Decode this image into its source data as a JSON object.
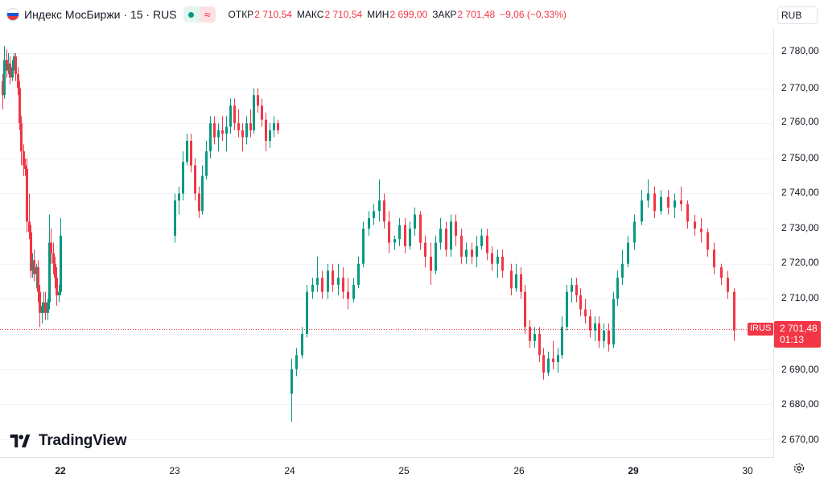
{
  "header": {
    "symbol_title": "Индекс МосБиржи · 15 · RUS",
    "status_delay_icon": "≈",
    "ohlc": {
      "open_label": "ОТКР",
      "open_value": "2 710,54",
      "high_label": "МАКС",
      "high_value": "2 710,54",
      "low_label": "МИН",
      "low_value": "2 699,00",
      "close_label": "ЗАКР",
      "close_value": "2 701,48",
      "change": "−9,06 (−0,33%)"
    },
    "flag_colors": [
      "#ffffff",
      "#1c57d4",
      "#e53935"
    ],
    "icons": [
      "russia-flag-icon",
      "market-open-icon",
      "delayed-data-icon",
      "settings-gear-icon",
      "tradingview-logo-icon"
    ]
  },
  "currency_button": "RUB",
  "price_scale": {
    "labels": [
      "2 780,00",
      "2 770,00",
      "2 760,00",
      "2 750,00",
      "2 740,00",
      "2 730,00",
      "2 720,00",
      "2 710,00",
      "2 690,00",
      "2 680,00",
      "2 670,00"
    ]
  },
  "time_scale": {
    "labels": [
      "22",
      "23",
      "24",
      "25",
      "26",
      "29",
      "30"
    ]
  },
  "last_price": {
    "symbol": "IRUS",
    "price": "2 701,48",
    "countdown": "01:13"
  },
  "logo": {
    "text": "TradingView"
  },
  "colors": {
    "up": "#089981",
    "down": "#f23645",
    "grid": "#f0f3fa",
    "text": "#131722"
  },
  "chart_data": {
    "type": "candlestick",
    "title": "Индекс МосБиржи · 15 · RUS",
    "ylim": [
      2665,
      2785
    ],
    "y_ticks": [
      2670,
      2680,
      2690,
      2700,
      2710,
      2720,
      2730,
      2740,
      2750,
      2760,
      2770,
      2780
    ],
    "x_categories": [
      "22",
      "23",
      "24",
      "25",
      "26",
      "29",
      "30"
    ],
    "last_price": 2701.48,
    "sessions": [
      {
        "day": "22",
        "ohlc": [
          [
            2772,
            2774,
            2764,
            2768
          ],
          [
            2768,
            2782,
            2767,
            2778
          ],
          [
            2778,
            2781,
            2773,
            2775
          ],
          [
            2775,
            2780,
            2774,
            2777
          ],
          [
            2777,
            2779,
            2771,
            2773
          ],
          [
            2773,
            2778,
            2772,
            2776
          ],
          [
            2776,
            2780,
            2775,
            2779
          ],
          [
            2779,
            2780,
            2772,
            2774
          ],
          [
            2774,
            2776,
            2768,
            2770
          ],
          [
            2770,
            2772,
            2758,
            2760
          ],
          [
            2760,
            2762,
            2748,
            2752
          ],
          [
            2752,
            2754,
            2745,
            2748
          ],
          [
            2748,
            2750,
            2745,
            2747
          ],
          [
            2747,
            2750,
            2729,
            2732
          ],
          [
            2732,
            2740,
            2727,
            2729
          ],
          [
            2729,
            2731,
            2716,
            2718
          ],
          [
            2718,
            2723,
            2716,
            2721
          ],
          [
            2721,
            2724,
            2715,
            2717
          ],
          [
            2717,
            2720,
            2713,
            2719
          ],
          [
            2719,
            2721,
            2709,
            2712
          ],
          [
            2712,
            2714,
            2702,
            2706
          ],
          [
            2706,
            2709,
            2703,
            2708
          ],
          [
            2708,
            2712,
            2706,
            2709
          ],
          [
            2709,
            2712,
            2704,
            2706
          ],
          [
            2706,
            2710,
            2704,
            2709
          ],
          [
            2709,
            2734,
            2707,
            2726
          ],
          [
            2726,
            2730,
            2720,
            2723
          ],
          [
            2723,
            2726,
            2717,
            2720
          ],
          [
            2720,
            2722,
            2713,
            2716
          ],
          [
            2716,
            2719,
            2708,
            2711
          ],
          [
            2711,
            2714,
            2709,
            2712
          ],
          [
            2712,
            2733,
            2711,
            2728
          ]
        ]
      },
      {
        "day": "23",
        "ohlc": [
          [
            2728,
            2740,
            2726,
            2738
          ],
          [
            2738,
            2742,
            2734,
            2740
          ],
          [
            2740,
            2752,
            2738,
            2749
          ],
          [
            2749,
            2757,
            2748,
            2755
          ],
          [
            2755,
            2757,
            2746,
            2748
          ],
          [
            2748,
            2750,
            2738,
            2740
          ],
          [
            2740,
            2742,
            2733,
            2735
          ],
          [
            2735,
            2748,
            2734,
            2745
          ],
          [
            2745,
            2755,
            2744,
            2752
          ],
          [
            2752,
            2762,
            2750,
            2760
          ],
          [
            2760,
            2762,
            2754,
            2756
          ],
          [
            2756,
            2760,
            2752,
            2758
          ],
          [
            2758,
            2762,
            2755,
            2757
          ],
          [
            2757,
            2762,
            2752,
            2759
          ],
          [
            2759,
            2767,
            2757,
            2765
          ],
          [
            2765,
            2767,
            2758,
            2760
          ],
          [
            2760,
            2764,
            2756,
            2758
          ],
          [
            2758,
            2760,
            2752,
            2756
          ],
          [
            2756,
            2762,
            2754,
            2760
          ],
          [
            2760,
            2764,
            2756,
            2758
          ],
          [
            2758,
            2770,
            2757,
            2768
          ],
          [
            2768,
            2770,
            2763,
            2765
          ],
          [
            2765,
            2767,
            2759,
            2761
          ],
          [
            2761,
            2763,
            2752,
            2755
          ],
          [
            2755,
            2760,
            2753,
            2758
          ],
          [
            2758,
            2762,
            2756,
            2760
          ],
          [
            2760,
            2761,
            2757,
            2758
          ]
        ]
      },
      {
        "day": "24",
        "ohlc": [
          [
            2683,
            2693,
            2675,
            2690
          ],
          [
            2690,
            2696,
            2688,
            2694
          ],
          [
            2694,
            2702,
            2693,
            2700
          ],
          [
            2700,
            2714,
            2699,
            2712
          ],
          [
            2712,
            2716,
            2710,
            2714
          ],
          [
            2714,
            2722,
            2712,
            2716
          ],
          [
            2716,
            2718,
            2710,
            2712
          ],
          [
            2712,
            2720,
            2710,
            2718
          ],
          [
            2718,
            2720,
            2712,
            2714
          ],
          [
            2714,
            2720,
            2711,
            2716
          ],
          [
            2716,
            2719,
            2710,
            2712
          ],
          [
            2712,
            2716,
            2707,
            2710
          ],
          [
            2710,
            2716,
            2709,
            2714
          ],
          [
            2714,
            2722,
            2713,
            2720
          ],
          [
            2720,
            2732,
            2719,
            2730
          ],
          [
            2730,
            2735,
            2728,
            2733
          ],
          [
            2733,
            2737,
            2731,
            2735
          ],
          [
            2735,
            2744,
            2732,
            2738
          ],
          [
            2738,
            2740,
            2730,
            2732
          ],
          [
            2732,
            2735,
            2723,
            2726
          ],
          [
            2726,
            2728,
            2724,
            2727
          ],
          [
            2727,
            2733,
            2725,
            2731
          ],
          [
            2731,
            2733,
            2723,
            2725
          ],
          [
            2725,
            2732,
            2724,
            2730
          ],
          [
            2730,
            2736,
            2728,
            2734
          ],
          [
            2734,
            2735,
            2724,
            2726
          ],
          [
            2726,
            2728,
            2719,
            2722
          ],
          [
            2722,
            2726,
            2714,
            2718
          ],
          [
            2718,
            2728,
            2717,
            2726
          ],
          [
            2726,
            2733,
            2724,
            2730
          ],
          [
            2730,
            2732,
            2722,
            2724
          ],
          [
            2724,
            2734,
            2722,
            2732
          ],
          [
            2732,
            2734,
            2725,
            2728
          ],
          [
            2728,
            2730,
            2720,
            2722
          ],
          [
            2722,
            2726,
            2720,
            2724
          ],
          [
            2724,
            2726,
            2720,
            2722
          ],
          [
            2722,
            2728,
            2719,
            2725
          ],
          [
            2725,
            2730,
            2724,
            2728
          ],
          [
            2728,
            2730,
            2721,
            2723
          ],
          [
            2723,
            2725,
            2718,
            2720
          ],
          [
            2720,
            2724,
            2716,
            2722
          ],
          [
            2722,
            2724,
            2716,
            2718
          ]
        ]
      },
      {
        "day": "25",
        "ohlc": [
          [
            2718,
            2720,
            2711,
            2713
          ],
          [
            2713,
            2720,
            2712,
            2717
          ],
          [
            2717,
            2719,
            2710,
            2712
          ],
          [
            2712,
            2714,
            2700,
            2702
          ],
          [
            2702,
            2704,
            2696,
            2698
          ],
          [
            2698,
            2702,
            2696,
            2700
          ],
          [
            2700,
            2702,
            2692,
            2694
          ],
          [
            2694,
            2696,
            2687,
            2689
          ],
          [
            2689,
            2695,
            2688,
            2693
          ],
          [
            2693,
            2698,
            2690,
            2692
          ],
          [
            2692,
            2696,
            2689,
            2694
          ],
          [
            2694,
            2705,
            2693,
            2702
          ],
          [
            2702,
            2714,
            2701,
            2712
          ],
          [
            2712,
            2716,
            2709,
            2714
          ],
          [
            2714,
            2716,
            2709,
            2711
          ],
          [
            2711,
            2713,
            2705,
            2707
          ],
          [
            2707,
            2710,
            2703,
            2705
          ],
          [
            2705,
            2707,
            2699,
            2701
          ],
          [
            2701,
            2705,
            2698,
            2703
          ],
          [
            2703,
            2705,
            2696,
            2698
          ],
          [
            2698,
            2703,
            2696,
            2701
          ],
          [
            2701,
            2703,
            2695,
            2697
          ],
          [
            2697,
            2712,
            2696,
            2710
          ],
          [
            2710,
            2718,
            2708,
            2716
          ],
          [
            2716,
            2724,
            2714,
            2720
          ]
        ]
      },
      {
        "day": "29",
        "ohlc": [
          [
            2720,
            2728,
            2719,
            2726
          ],
          [
            2726,
            2734,
            2724,
            2732
          ],
          [
            2732,
            2741,
            2731,
            2738
          ],
          [
            2738,
            2744,
            2736,
            2740
          ],
          [
            2740,
            2742,
            2733,
            2735
          ],
          [
            2735,
            2741,
            2734,
            2739
          ],
          [
            2739,
            2741,
            2734,
            2736
          ],
          [
            2736,
            2740,
            2733,
            2738
          ],
          [
            2738,
            2742,
            2735,
            2737
          ],
          [
            2737,
            2738,
            2730,
            2732
          ],
          [
            2732,
            2734,
            2728,
            2730
          ],
          [
            2730,
            2733,
            2726,
            2729
          ],
          [
            2729,
            2730,
            2722,
            2724
          ],
          [
            2724,
            2726,
            2717,
            2719
          ],
          [
            2719,
            2720,
            2714,
            2716
          ],
          [
            2716,
            2718,
            2710,
            2712
          ],
          [
            2712,
            2713,
            2698,
            2701
          ]
        ]
      }
    ]
  }
}
